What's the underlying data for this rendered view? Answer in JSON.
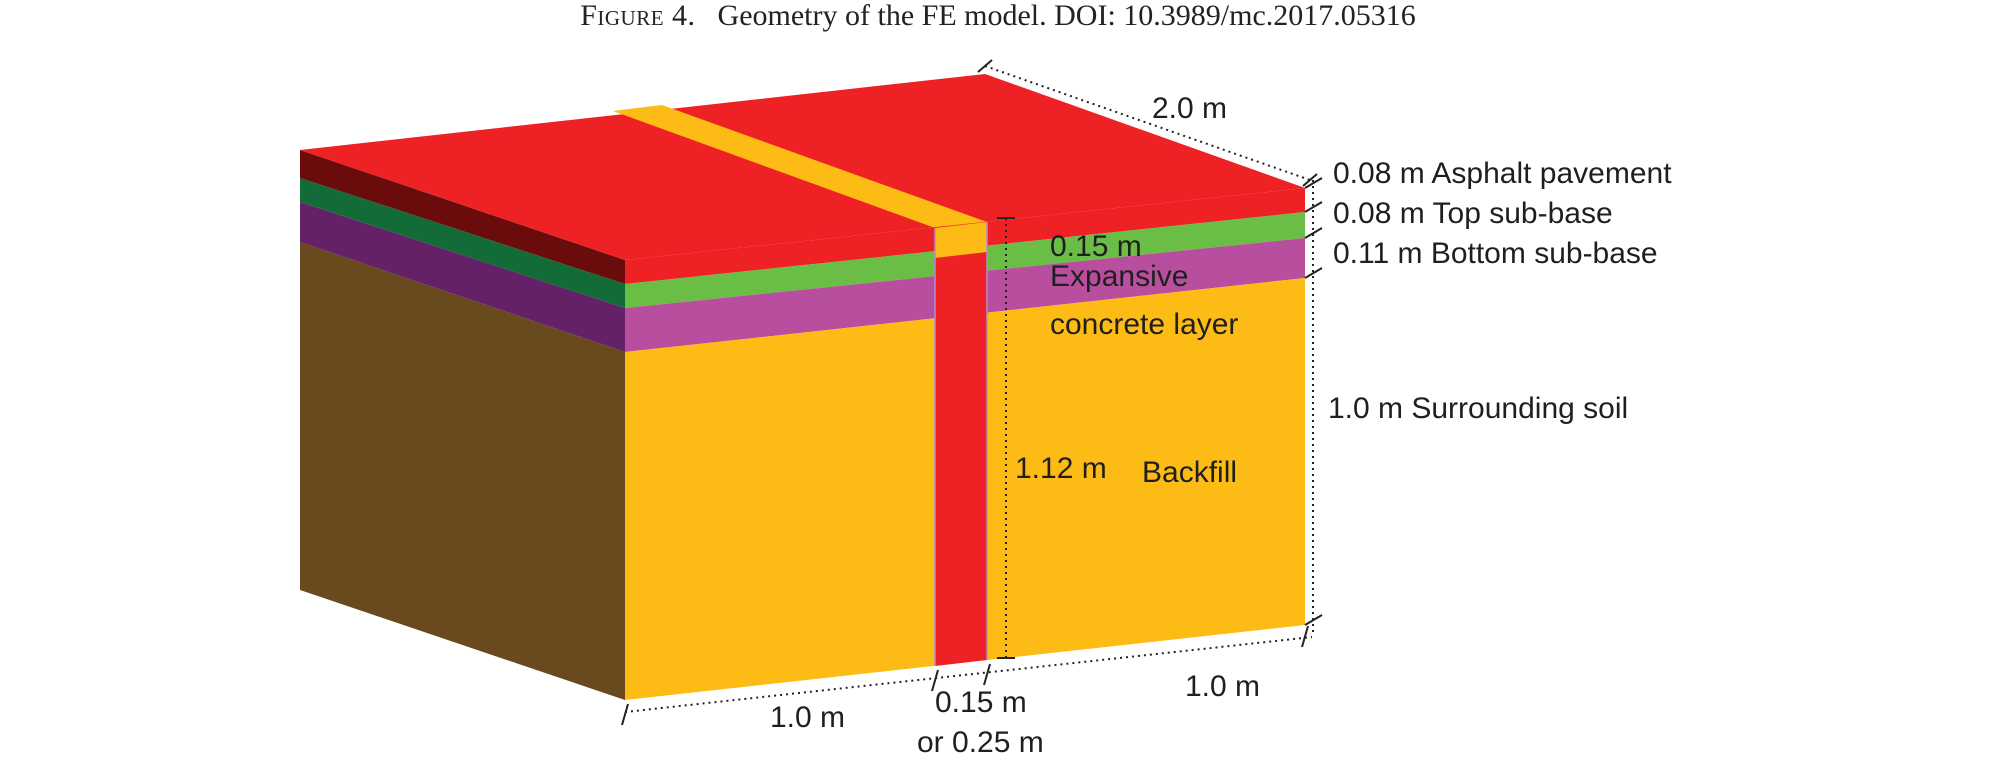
{
  "caption": {
    "figure_label": "Figure 4.",
    "text": "Geometry of the FE model. DOI: 10.3989/mc.2017.05316"
  },
  "colors": {
    "asphalt": "#ee2225",
    "asphalt_side": "#6b0c0c",
    "top_subbase": "#6abd45",
    "top_subbase_side": "#136b37",
    "bottom_subbase": "#b84f9e",
    "bottom_subbase_side": "#642167",
    "soil_front": "#fcbb15",
    "soil_side": "#694a1f",
    "backfill": "#ee2225",
    "concrete_strip": "#fcbb15"
  },
  "labels": {
    "length_dim": "2.0 m",
    "asphalt": "0.08 m Asphalt pavement",
    "top_subbase": "0.08 m Top sub-base",
    "bottom_subbase": "0.11 m Bottom sub-base",
    "soil": "1.0 m Surrounding soil",
    "concrete_thickness": "0.15 m",
    "concrete_name_1": "Expansive",
    "concrete_name_2": "concrete layer",
    "trench_depth": "1.12 m",
    "backfill": "Backfill",
    "left_width": "1.0 m",
    "trench_width_1": "0.15 m",
    "trench_width_2": "or 0.25 m",
    "right_width": "1.0 m"
  }
}
